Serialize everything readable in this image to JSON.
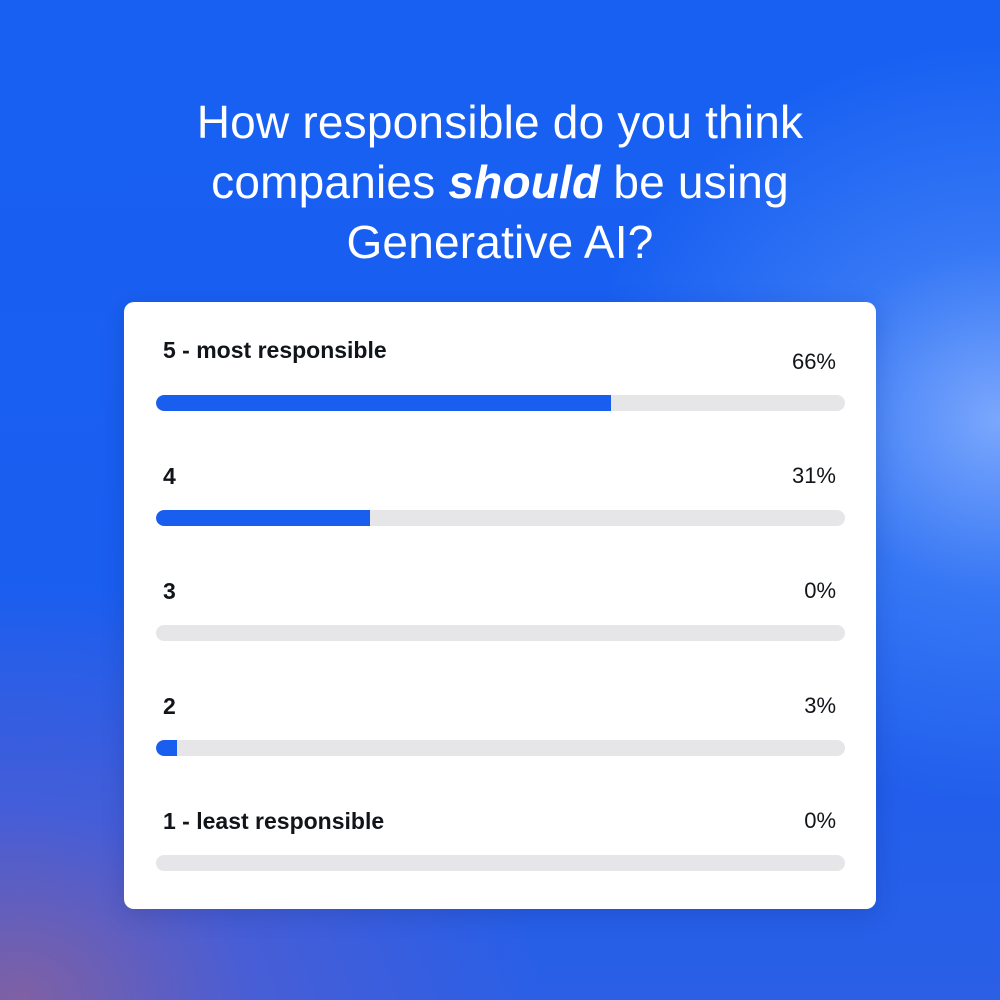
{
  "question": {
    "part1": "How responsible do you think companies",
    "emphasis": "should",
    "part2": "be using Generative AI?"
  },
  "colors": {
    "background": "#1a5ef0",
    "bar_fill": "#1a5ef0",
    "bar_track": "#e6e5e8",
    "card": "#ffffff"
  },
  "chart_data": {
    "type": "bar",
    "orientation": "horizontal",
    "title": "How responsible do you think companies should be using Generative AI?",
    "categories": [
      "5 - most responsible",
      "4",
      "3",
      "2",
      "1 - least responsible"
    ],
    "values": [
      66,
      31,
      0,
      3,
      0
    ],
    "value_labels": [
      "66%",
      "31%",
      "0%",
      "3%",
      "0%"
    ],
    "unit": "%",
    "xlim": [
      0,
      100
    ],
    "grid": false,
    "legend": false
  }
}
